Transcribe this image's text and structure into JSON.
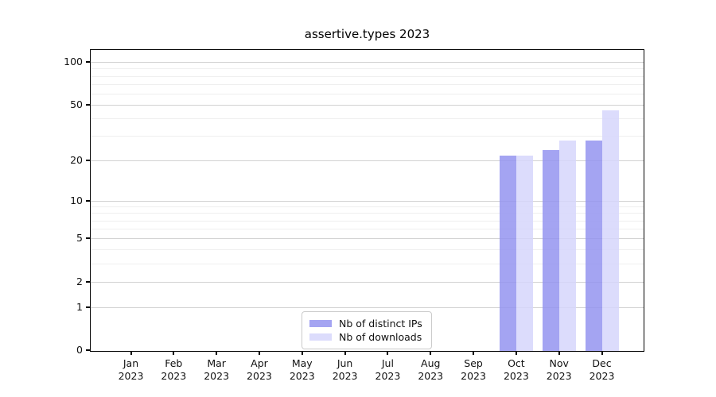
{
  "chart_data": {
    "type": "bar",
    "title": "assertive.types 2023",
    "x_categories": [
      {
        "month": "Jan",
        "year": "2023"
      },
      {
        "month": "Feb",
        "year": "2023"
      },
      {
        "month": "Mar",
        "year": "2023"
      },
      {
        "month": "Apr",
        "year": "2023"
      },
      {
        "month": "May",
        "year": "2023"
      },
      {
        "month": "Jun",
        "year": "2023"
      },
      {
        "month": "Jul",
        "year": "2023"
      },
      {
        "month": "Aug",
        "year": "2023"
      },
      {
        "month": "Sep",
        "year": "2023"
      },
      {
        "month": "Oct",
        "year": "2023"
      },
      {
        "month": "Nov",
        "year": "2023"
      },
      {
        "month": "Dec",
        "year": "2023"
      }
    ],
    "series": [
      {
        "name": "Nb of distinct IPs",
        "color": "#a4a4f2",
        "color_rgba": "rgba(148,148,240,0.85)",
        "values": [
          0,
          0,
          0,
          0,
          0,
          0,
          0,
          0,
          0,
          22,
          24,
          28
        ]
      },
      {
        "name": "Nb of downloads",
        "color": "#dcdcfb",
        "color_rgba": "rgba(214,214,251,0.85)",
        "values": [
          0,
          0,
          0,
          0,
          0,
          0,
          0,
          0,
          0,
          22,
          28,
          46
        ]
      }
    ],
    "y_axis": {
      "scale": "log1p",
      "ticks": [
        0,
        1,
        2,
        5,
        10,
        20,
        50,
        100
      ],
      "minor_gridlines": [
        3,
        4,
        6,
        7,
        8,
        9,
        30,
        40,
        60,
        70,
        80,
        90
      ]
    },
    "legend": {
      "position": "bottom-center"
    },
    "grid": true
  }
}
